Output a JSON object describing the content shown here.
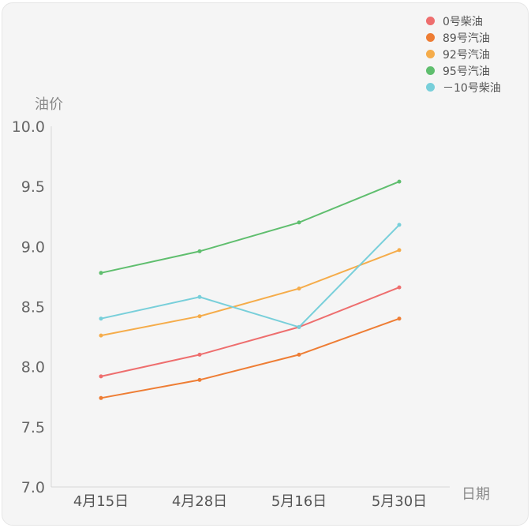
{
  "chart_data": {
    "type": "line",
    "xlabel": "日期",
    "ylabel": "油价",
    "categories": [
      "4月15日",
      "4月28日",
      "5月16日",
      "5月30日"
    ],
    "ylim": [
      7.0,
      10.0
    ],
    "yticks": [
      "7.0",
      "7.5",
      "8.0",
      "8.5",
      "9.0",
      "9.5",
      "10.0"
    ],
    "grid": false,
    "legend_position": "top-right",
    "series": [
      {
        "name": "0号柴油",
        "color": "#ee6e6e",
        "values": [
          7.92,
          8.1,
          8.33,
          8.66
        ]
      },
      {
        "name": "89号汽油",
        "color": "#ee7d34",
        "values": [
          7.74,
          7.89,
          8.1,
          8.4
        ]
      },
      {
        "name": "92号汽油",
        "color": "#f5ac4a",
        "values": [
          8.26,
          8.42,
          8.65,
          8.97
        ]
      },
      {
        "name": "95号汽油",
        "color": "#5fbe6e",
        "values": [
          8.78,
          8.96,
          9.2,
          9.54
        ]
      },
      {
        "name": "－10号柴油",
        "color": "#78cfda",
        "values": [
          8.4,
          8.58,
          8.33,
          9.18
        ]
      }
    ]
  }
}
